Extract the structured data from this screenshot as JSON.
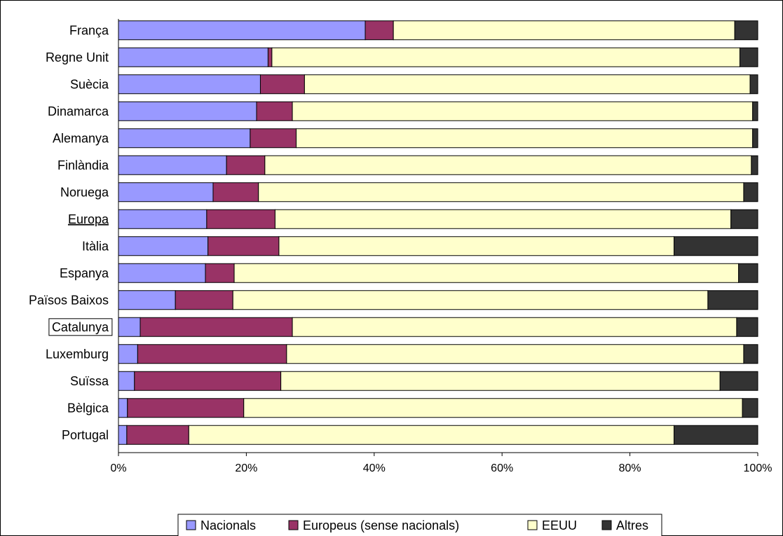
{
  "chart_data": {
    "type": "bar",
    "orientation": "horizontal",
    "stacked": true,
    "stacking": "percent",
    "categories": [
      "França",
      "Regne Unit",
      "Suècia",
      "Dinamarca",
      "Alemanya",
      "Finlàndia",
      "Noruega",
      "Europa",
      "Itàlia",
      "Espanya",
      "Països Baixos",
      "Catalunya",
      "Luxemburg",
      "Suïssa",
      "Bèlgica",
      "Portugal"
    ],
    "emphasis": {
      "underlined": [
        "Europa"
      ],
      "boxed": [
        "Catalunya"
      ]
    },
    "series": [
      {
        "name": "Nacionals",
        "color": "#9999ff",
        "values": [
          38.6,
          23.4,
          22.2,
          21.6,
          20.6,
          16.9,
          14.8,
          13.8,
          14.0,
          13.6,
          8.9,
          3.4,
          3.0,
          2.5,
          1.4,
          1.3
        ]
      },
      {
        "name": "Europeus (sense nacionals)",
        "color": "#993366",
        "values": [
          4.4,
          0.6,
          6.9,
          5.6,
          7.2,
          6.0,
          7.1,
          10.7,
          11.1,
          4.5,
          9.0,
          23.8,
          23.3,
          22.9,
          18.2,
          9.7
        ]
      },
      {
        "name": "EEUU",
        "color": "#ffffcc",
        "values": [
          53.4,
          73.2,
          69.7,
          72.0,
          71.4,
          76.1,
          75.9,
          71.3,
          61.8,
          78.9,
          74.3,
          69.5,
          71.5,
          68.7,
          78.0,
          75.9
        ]
      },
      {
        "name": "Altres",
        "color": "#333333",
        "values": [
          3.6,
          2.8,
          1.2,
          0.8,
          0.8,
          1.0,
          2.2,
          4.2,
          13.1,
          3.0,
          7.8,
          3.3,
          2.2,
          5.9,
          2.4,
          13.1
        ]
      }
    ],
    "x_ticks": [
      "0%",
      "20%",
      "40%",
      "60%",
      "80%",
      "100%"
    ],
    "xlim": [
      0,
      100
    ],
    "grid": false,
    "legend_position": "bottom"
  }
}
